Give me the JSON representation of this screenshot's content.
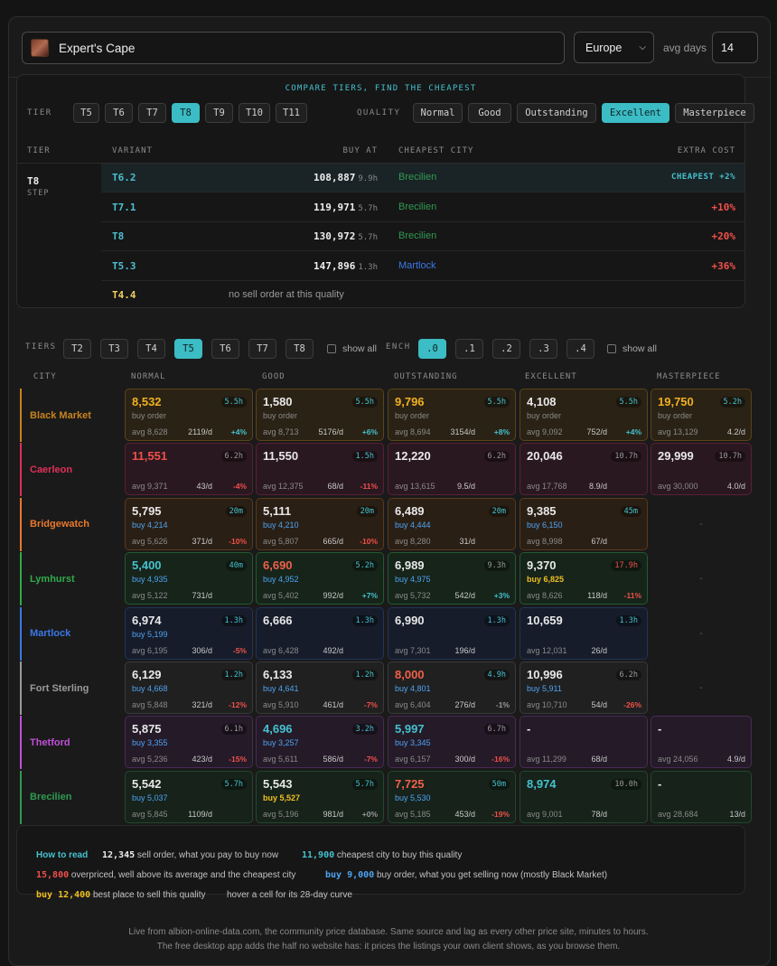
{
  "header": {
    "item_name": "Expert's Cape",
    "region": "Europe",
    "avg_days_label": "avg days",
    "avg_days_value": "14"
  },
  "compare": {
    "title": "COMPARE TIERS, FIND THE CHEAPEST",
    "tier_label": "TIER",
    "tiers": [
      "T5",
      "T6",
      "T7",
      "T8",
      "T9",
      "T10",
      "T11"
    ],
    "active_tier": "T8",
    "quality_label": "QUALITY",
    "qualities": [
      "Normal",
      "Good",
      "Outstanding",
      "Excellent",
      "Masterpiece"
    ],
    "active_quality": "Excellent",
    "headers": {
      "tier": "TIER",
      "variant": "VARIANT",
      "buy_at": "BUY AT",
      "cheapest_city": "CHEAPEST CITY",
      "extra_cost": "EXTRA COST"
    },
    "tier_cell": {
      "tier": "T8",
      "step": "STEP"
    },
    "rows": [
      {
        "variant": "T6.2",
        "price": "108,887",
        "age": "9.9h",
        "city": "Brecilien",
        "city_color": "#2f9a52",
        "extra": "CHEAPEST +2%",
        "cheapest": true
      },
      {
        "variant": "T7.1",
        "price": "119,971",
        "age": "5.7h",
        "city": "Brecilien",
        "city_color": "#2f9a52",
        "extra": "+10%"
      },
      {
        "variant": "T8",
        "price": "130,972",
        "age": "5.7h",
        "city": "Brecilien",
        "city_color": "#2f9a52",
        "extra": "+20%"
      },
      {
        "variant": "T5.3",
        "price": "147,896",
        "age": "1.3h",
        "city": "Martlock",
        "city_color": "#3a78e6",
        "extra": "+36%"
      }
    ],
    "last_row": {
      "variant": "T4.4",
      "note": "no sell order at this quality"
    }
  },
  "filters": {
    "tiers_label": "TIERS",
    "tiers": [
      "T2",
      "T3",
      "T4",
      "T5",
      "T6",
      "T7",
      "T8"
    ],
    "active_tier": "T5",
    "show_all": "show all",
    "ench_label": "ENCH",
    "enchants": [
      ".0",
      ".1",
      ".2",
      ".3",
      ".4"
    ],
    "active_ench": ".0"
  },
  "grid": {
    "headers": [
      "CITY",
      "NORMAL",
      "GOOD",
      "OUTSTANDING",
      "EXCELLENT",
      "MASTERPIECE"
    ],
    "rows": [
      {
        "city": "Black Market",
        "color": "#c8821e",
        "bg": "#2a2215",
        "bd": "#5a4418",
        "cells": [
          {
            "p": "8,532",
            "pc": "#f0b020",
            "a": "5.5h",
            "ac": "#45c2cf",
            "b": "buy order",
            "bc": "#8a8a8a",
            "v": "avg 8,628",
            "vol": "2119/d",
            "d": "+4%",
            "dc": "#45c2cf"
          },
          {
            "p": "1,580",
            "pc": "#e8e8e8",
            "a": "5.5h",
            "ac": "#45c2cf",
            "b": "buy order",
            "bc": "#8a8a8a",
            "v": "avg 8,713",
            "vol": "5176/d",
            "d": "+6%",
            "dc": "#45c2cf"
          },
          {
            "p": "9,796",
            "pc": "#f0b020",
            "a": "5.5h",
            "ac": "#45c2cf",
            "b": "buy order",
            "bc": "#8a8a8a",
            "v": "avg 8,694",
            "vol": "3154/d",
            "d": "+8%",
            "dc": "#45c2cf"
          },
          {
            "p": "4,108",
            "pc": "#e8e8e8",
            "a": "5.5h",
            "ac": "#45c2cf",
            "b": "buy order",
            "bc": "#8a8a8a",
            "v": "avg 9,092",
            "vol": "752/d",
            "d": "+4%",
            "dc": "#45c2cf"
          },
          {
            "p": "19,750",
            "pc": "#f0b020",
            "a": "5.2h",
            "ac": "#45c2cf",
            "b": "buy order",
            "bc": "#8a8a8a",
            "v": "avg 13,129",
            "vol": "4.2/d",
            "ms": true
          }
        ]
      },
      {
        "city": "Caerleon",
        "color": "#e0305a",
        "bg": "#2a1820",
        "bd": "#5a2034",
        "cells": [
          {
            "p": "11,551",
            "pc": "#f0504a",
            "a": "6.2h",
            "ac": "#9a9a9a",
            "v": "avg 9,371",
            "vol": "43/d",
            "d": "-4%",
            "dc": "#f0504a"
          },
          {
            "p": "11,550",
            "pc": "#e8e8e8",
            "a": "1.5h",
            "ac": "#45c2cf",
            "v": "avg 12,375",
            "vol": "68/d",
            "d": "-11%",
            "dc": "#f0504a"
          },
          {
            "p": "12,220",
            "pc": "#e8e8e8",
            "a": "6.2h",
            "ac": "#9a9a9a",
            "v": "avg 13,615",
            "vol": "9.5/d"
          },
          {
            "p": "20,046",
            "pc": "#e8e8e8",
            "a": "10.7h",
            "ac": "#9a9a9a",
            "v": "avg 17,768",
            "vol": "8.9/d"
          },
          {
            "p": "29,999",
            "pc": "#e8e8e8",
            "a": "10.7h",
            "ac": "#9a9a9a",
            "v": "avg 30,000",
            "vol": "4.0/d",
            "ms": true
          }
        ]
      },
      {
        "city": "Bridgewatch",
        "color": "#e8782a",
        "bg": "#2a1f15",
        "bd": "#5a3a1a",
        "cells": [
          {
            "p": "5,795",
            "pc": "#e8e8e8",
            "a": "20m",
            "ac": "#45c2cf",
            "b": "buy 4,214",
            "bc": "#4ea3f2",
            "v": "avg 5,626",
            "vol": "371/d",
            "d": "-10%",
            "dc": "#f0504a"
          },
          {
            "p": "5,111",
            "pc": "#e8e8e8",
            "a": "20m",
            "ac": "#45c2cf",
            "b": "buy 4,210",
            "bc": "#4ea3f2",
            "v": "avg 5,807",
            "vol": "665/d",
            "d": "-10%",
            "dc": "#f0504a"
          },
          {
            "p": "6,489",
            "pc": "#e8e8e8",
            "a": "20m",
            "ac": "#45c2cf",
            "b": "buy 4,444",
            "bc": "#4ea3f2",
            "v": "avg 8,280",
            "vol": "31/d"
          },
          {
            "p": "9,385",
            "pc": "#e8e8e8",
            "a": "45m",
            "ac": "#45c2cf",
            "b": "buy 6,150",
            "bc": "#4ea3f2",
            "v": "avg 8,998",
            "vol": "67/d"
          },
          {
            "empty": true
          }
        ]
      },
      {
        "city": "Lymhurst",
        "color": "#2faa4a",
        "bg": "#16241a",
        "bd": "#235a30",
        "cells": [
          {
            "p": "5,400",
            "pc": "#45c2cf",
            "a": "40m",
            "ac": "#45c2cf",
            "b": "buy 4,935",
            "bc": "#4ea3f2",
            "v": "avg 5,122",
            "vol": "731/d"
          },
          {
            "p": "6,690",
            "pc": "#f0604a",
            "a": "5.2h",
            "ac": "#45c2cf",
            "b": "buy 4,952",
            "bc": "#4ea3f2",
            "v": "avg 5,402",
            "vol": "992/d",
            "d": "+7%",
            "dc": "#45c2cf"
          },
          {
            "p": "6,989",
            "pc": "#e8e8e8",
            "a": "9.3h",
            "ac": "#9a9a9a",
            "b": "buy 4,975",
            "bc": "#4ea3f2",
            "v": "avg 5,732",
            "vol": "542/d",
            "d": "+3%",
            "dc": "#45c2cf"
          },
          {
            "p": "9,370",
            "pc": "#e8e8e8",
            "a": "17.9h",
            "ac": "#f0504a",
            "b": "buy 6,825",
            "bc": "#f0c020",
            "v": "avg 8,626",
            "vol": "118/d",
            "d": "-11%",
            "dc": "#f0504a"
          },
          {
            "empty": true
          }
        ]
      },
      {
        "city": "Martlock",
        "color": "#3a78e6",
        "bg": "#161c2a",
        "bd": "#22345a",
        "cells": [
          {
            "p": "6,974",
            "pc": "#e8e8e8",
            "a": "1.3h",
            "ac": "#45c2cf",
            "b": "buy 5,199",
            "bc": "#4ea3f2",
            "v": "avg 6,195",
            "vol": "306/d",
            "d": "-5%",
            "dc": "#f0504a"
          },
          {
            "p": "6,666",
            "pc": "#e8e8e8",
            "a": "1.3h",
            "ac": "#45c2cf",
            "v": "avg 6,428",
            "vol": "492/d"
          },
          {
            "p": "6,990",
            "pc": "#e8e8e8",
            "a": "1.3h",
            "ac": "#45c2cf",
            "v": "avg 7,301",
            "vol": "196/d"
          },
          {
            "p": "10,659",
            "pc": "#e8e8e8",
            "a": "1.3h",
            "ac": "#45c2cf",
            "v": "avg 12,031",
            "vol": "26/d"
          },
          {
            "empty": true
          }
        ]
      },
      {
        "city": "Fort Sterling",
        "color": "#9a9a9a",
        "bg": "#202020",
        "bd": "#3a3a3a",
        "cells": [
          {
            "p": "6,129",
            "pc": "#e8e8e8",
            "a": "1.2h",
            "ac": "#45c2cf",
            "b": "buy 4,668",
            "bc": "#4ea3f2",
            "v": "avg 5,848",
            "vol": "321/d",
            "d": "-12%",
            "dc": "#f0504a"
          },
          {
            "p": "6,133",
            "pc": "#e8e8e8",
            "a": "1.2h",
            "ac": "#45c2cf",
            "b": "buy 4,641",
            "bc": "#4ea3f2",
            "v": "avg 5,910",
            "vol": "461/d",
            "d": "-7%",
            "dc": "#f0504a"
          },
          {
            "p": "8,000",
            "pc": "#f0604a",
            "a": "4.9h",
            "ac": "#45c2cf",
            "b": "buy 4,801",
            "bc": "#4ea3f2",
            "v": "avg 6,404",
            "vol": "276/d",
            "d": "-1%",
            "dc": "#9a9a9a"
          },
          {
            "p": "10,996",
            "pc": "#e8e8e8",
            "a": "6.2h",
            "ac": "#9a9a9a",
            "b": "buy 5,911",
            "bc": "#4ea3f2",
            "v": "avg 10,710",
            "vol": "54/d",
            "d": "-26%",
            "dc": "#f0504a"
          },
          {
            "empty": true
          }
        ]
      },
      {
        "city": "Thetford",
        "color": "#c050d8",
        "bg": "#241a28",
        "bd": "#4a2a55",
        "cells": [
          {
            "p": "5,875",
            "pc": "#e8e8e8",
            "a": "6.1h",
            "ac": "#9a9a9a",
            "b": "buy 3,355",
            "bc": "#4ea3f2",
            "v": "avg 5,236",
            "vol": "423/d",
            "d": "-15%",
            "dc": "#f0504a"
          },
          {
            "p": "4,696",
            "pc": "#45c2cf",
            "a": "3.2h",
            "ac": "#45c2cf",
            "b": "buy 3,257",
            "bc": "#4ea3f2",
            "v": "avg 5,611",
            "vol": "586/d",
            "d": "-7%",
            "dc": "#f0504a"
          },
          {
            "p": "5,997",
            "pc": "#45c2cf",
            "a": "6.7h",
            "ac": "#9a9a9a",
            "b": "buy 3,345",
            "bc": "#4ea3f2",
            "v": "avg 6,157",
            "vol": "300/d",
            "d": "-16%",
            "dc": "#f0504a"
          },
          {
            "p": "-",
            "pc": "#e8e8e8",
            "v": "avg 11,299",
            "vol": "68/d"
          },
          {
            "p": "-",
            "pc": "#e8e8e8",
            "v": "avg 24,056",
            "vol": "4.9/d",
            "ms": true
          }
        ]
      },
      {
        "city": "Brecilien",
        "color": "#2f9a52",
        "bg": "#16221a",
        "bd": "#22482e",
        "cells": [
          {
            "p": "5,542",
            "pc": "#e8e8e8",
            "a": "5.7h",
            "ac": "#45c2cf",
            "b": "buy 5,037",
            "bc": "#4ea3f2",
            "v": "avg 5,845",
            "vol": "1109/d"
          },
          {
            "p": "5,543",
            "pc": "#e8e8e8",
            "a": "5.7h",
            "ac": "#45c2cf",
            "b": "buy 5,527",
            "bc": "#f0c020",
            "v": "avg 5,196",
            "vol": "981/d",
            "d": "+0%",
            "dc": "#9a9a9a"
          },
          {
            "p": "7,725",
            "pc": "#f0604a",
            "a": "50m",
            "ac": "#45c2cf",
            "b": "buy 5,530",
            "bc": "#4ea3f2",
            "v": "avg 5,185",
            "vol": "453/d",
            "d": "-19%",
            "dc": "#f0504a"
          },
          {
            "p": "8,974",
            "pc": "#45c2cf",
            "a": "10.0h",
            "ac": "#9a9a9a",
            "v": "avg 9,001",
            "vol": "78/d"
          },
          {
            "p": "-",
            "pc": "#e8e8e8",
            "v": "avg 28,684",
            "vol": "13/d",
            "ms": true
          }
        ]
      }
    ]
  },
  "legend": {
    "how": "How to read",
    "l1a": "12,345",
    "l1b": "sell order, what you pay to buy now",
    "l1c": "11,900",
    "l1d": "cheapest city to buy this quality",
    "l2a": "15,800",
    "l2b": "overpriced, well above its average and the cheapest city",
    "l2c": "buy 9,000",
    "l2d": "buy order, what you get selling now (mostly Black Market)",
    "l3a": "buy 12,400",
    "l3b": "best place to sell this quality",
    "l3c": "hover a cell for its 28-day curve"
  },
  "footer": {
    "line1": "Live from albion-online-data.com, the community price database. Same source and lag as every other price site, minutes to hours.",
    "line2": "The free desktop app adds the half no website has: it prices the listings your own client shows, as you browse them."
  }
}
